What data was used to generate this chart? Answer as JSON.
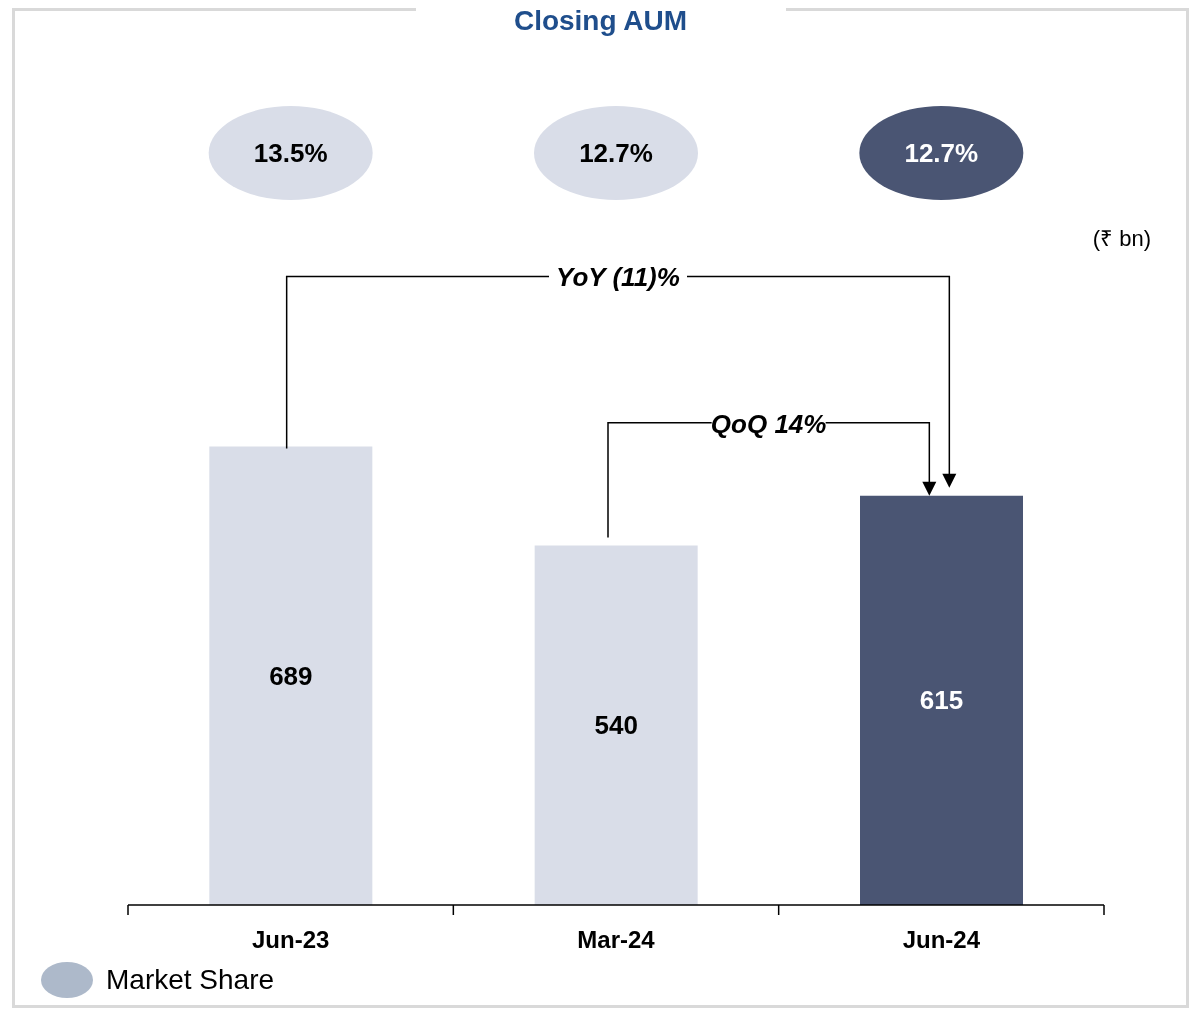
{
  "chart_data": {
    "type": "bar",
    "title": "Closing AUM",
    "categories": [
      "Jun-23",
      "Mar-24",
      "Jun-24"
    ],
    "colors": [
      "#d9dde8",
      "#d9dde8",
      "#4a5573"
    ],
    "values": [
      689,
      540,
      615
    ],
    "data_labels": true,
    "tick_labels": "x",
    "annotations": [
      "(₹ bn)",
      "YoY (11)%",
      "QoQ 14%",
      "Market Share",
      "13.5%",
      "12.7%",
      "12.7%"
    ]
  }
}
